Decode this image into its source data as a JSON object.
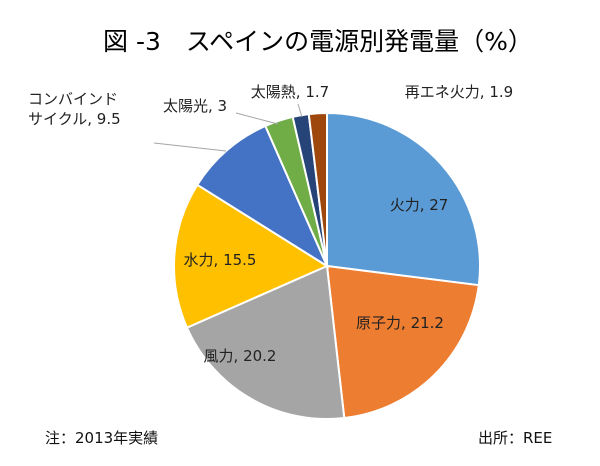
{
  "chart_data": {
    "type": "pie",
    "title": "図 -3　スペインの電源別発電量（%）",
    "unit": "%",
    "slices": [
      {
        "name": "火力",
        "value": 27,
        "color": "#5b9bd5",
        "label": "火力, 27"
      },
      {
        "name": "原子力",
        "value": 21.2,
        "color": "#ed7d31",
        "label": "原子力, 21.2"
      },
      {
        "name": "風力",
        "value": 20.2,
        "color": "#a5a5a5",
        "label": "風力, 20.2"
      },
      {
        "name": "水力",
        "value": 15.5,
        "color": "#ffc000",
        "label": "水力, 15.5"
      },
      {
        "name": "コンバインドサイクル",
        "value": 9.5,
        "color": "#4472c4",
        "label_lines": [
          "コンバインド",
          "サイクル, 9.5"
        ]
      },
      {
        "name": "太陽光",
        "value": 3,
        "color": "#70ad47",
        "label": "太陽光, 3"
      },
      {
        "name": "太陽熱",
        "value": 1.7,
        "color": "#264478",
        "label": "太陽熱, 1.7"
      },
      {
        "name": "再エネ火力",
        "value": 1.9,
        "color": "#9e480e",
        "label": "再エネ火力, 1.9"
      }
    ]
  },
  "footer": {
    "note": "注：2013年実績",
    "source": "出所：REE"
  }
}
